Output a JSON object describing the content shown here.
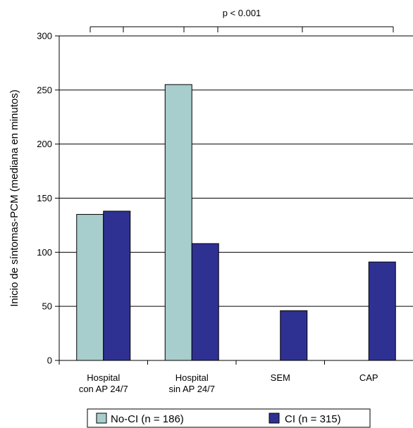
{
  "chart_data": {
    "type": "bar",
    "title": "",
    "xlabel": "",
    "ylabel": "Inicio de síntomas-PCM (mediana en minutos)",
    "ylim": [
      0,
      300
    ],
    "yticks": [
      0,
      50,
      100,
      150,
      200,
      250,
      300
    ],
    "grid": true,
    "categories": [
      [
        "Hospital",
        "con AP 24/7"
      ],
      [
        "Hospital",
        "sin AP 24/7"
      ],
      [
        "SEM"
      ],
      [
        "CAP"
      ]
    ],
    "series": [
      {
        "name": "No-CI (n = 186)",
        "color": "#a8cdcd",
        "values": [
          135,
          255,
          null,
          null
        ]
      },
      {
        "name": "CI (n = 315)",
        "color": "#2e3192",
        "values": [
          138,
          108,
          46,
          91
        ]
      }
    ],
    "annotation": "p < 0.001",
    "legend_position": "bottom"
  }
}
